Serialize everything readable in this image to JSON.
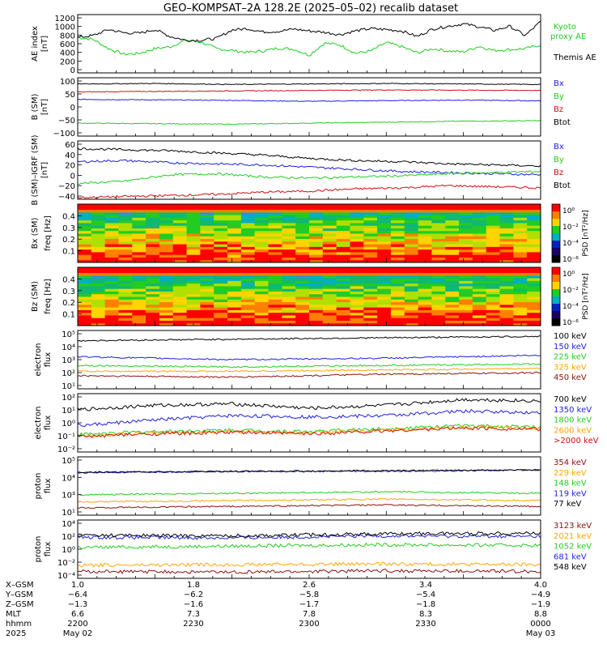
{
  "title": "GEO–KOMPSAT–2A 128.2E (2025–05–02) recalib dataset",
  "colors": {
    "black": "#000000",
    "blue": "#1f1fdc",
    "green": "#22cc22",
    "red": "#cc1111",
    "orange": "#ffa500",
    "darkred": "#8b1010",
    "kyoto": "#22cc22"
  },
  "chart_data": [
    {
      "type": "line",
      "id": "ae",
      "ylabel": "AE index [nT]",
      "yticks": [
        "0",
        "200",
        "400",
        "600",
        "800",
        "1000",
        "1200"
      ],
      "ylim": [
        0,
        1250
      ],
      "scale": "linear",
      "series": [
        {
          "name": "Kyoto proxy AE",
          "color": "#22cc22",
          "x": [
            1.0,
            1.1,
            1.2,
            1.3,
            1.4,
            1.5,
            1.6,
            1.7,
            1.8,
            1.9,
            2.0,
            2.1,
            2.2,
            2.3,
            2.4,
            2.5,
            2.6,
            2.7,
            2.8,
            2.9,
            3.0,
            3.1,
            3.2,
            3.3,
            3.4,
            3.5,
            3.6,
            3.7,
            3.8,
            3.9,
            4.0
          ],
          "values": [
            760,
            720,
            520,
            400,
            420,
            520,
            560,
            700,
            660,
            520,
            480,
            440,
            470,
            530,
            510,
            380,
            640,
            600,
            420,
            470,
            650,
            560,
            430,
            520,
            470,
            450,
            570,
            480,
            500,
            520,
            600
          ]
        },
        {
          "name": "Themis AE",
          "color": "#000000",
          "x": [
            1.0,
            1.1,
            1.2,
            1.3,
            1.4,
            1.5,
            1.6,
            1.7,
            1.8,
            1.9,
            2.0,
            2.1,
            2.2,
            2.3,
            2.4,
            2.5,
            2.6,
            2.7,
            2.8,
            2.9,
            3.0,
            3.1,
            3.2,
            3.3,
            3.4,
            3.5,
            3.6,
            3.7,
            3.8,
            3.9,
            4.0
          ],
          "values": [
            760,
            800,
            930,
            860,
            850,
            930,
            780,
            700,
            700,
            740,
            920,
            950,
            880,
            890,
            940,
            900,
            870,
            820,
            900,
            950,
            930,
            900,
            780,
            940,
            1000,
            1050,
            990,
            910,
            1000,
            800,
            1100
          ]
        }
      ]
    },
    {
      "type": "line",
      "id": "bsm",
      "ylabel": "B (SM) [nT]",
      "yticks": [
        "−100",
        "−50",
        "0",
        "50",
        "100"
      ],
      "ylim": [
        -110,
        125
      ],
      "scale": "linear",
      "series": [
        {
          "name": "Bx",
          "color": "#1f1fdc",
          "x": [
            1.0,
            1.5,
            2.0,
            2.5,
            3.0,
            3.5,
            4.0
          ],
          "values": [
            38,
            36,
            34,
            30,
            33,
            35,
            32
          ]
        },
        {
          "name": "By",
          "color": "#22cc22",
          "x": [
            1.0,
            1.5,
            2.0,
            2.5,
            3.0,
            3.5,
            4.0
          ],
          "values": [
            -58,
            -60,
            -62,
            -58,
            -54,
            -50,
            -48
          ]
        },
        {
          "name": "Bz",
          "color": "#cc1111",
          "x": [
            1.0,
            1.5,
            2.0,
            2.5,
            3.0,
            3.5,
            4.0
          ],
          "values": [
            68,
            70,
            72,
            74,
            76,
            75,
            74
          ]
        },
        {
          "name": "Btot",
          "color": "#000000",
          "x": [
            1.0,
            1.5,
            2.0,
            2.5,
            3.0,
            3.5,
            4.0
          ],
          "values": [
            100,
            102,
            98,
            100,
            102,
            100,
            98
          ]
        }
      ]
    },
    {
      "type": "line",
      "id": "bdiff",
      "ylabel": "B (SM)–IGRF (SM) [nT]",
      "yticks": [
        "−40",
        "−20",
        "0",
        "20",
        "40",
        "60"
      ],
      "ylim": [
        -45,
        62
      ],
      "scale": "linear",
      "series": [
        {
          "name": "Bx",
          "color": "#1f1fdc",
          "x": [
            1.0,
            1.3,
            1.6,
            1.9,
            2.2,
            2.5,
            2.8,
            3.1,
            3.4,
            3.7,
            4.0
          ],
          "values": [
            24,
            26,
            22,
            20,
            18,
            14,
            10,
            6,
            4,
            2,
            0
          ]
        },
        {
          "name": "By",
          "color": "#22cc22",
          "x": [
            1.0,
            1.3,
            1.6,
            1.9,
            2.2,
            2.5,
            2.8,
            3.1,
            3.4,
            3.7,
            4.0
          ],
          "values": [
            -16,
            -12,
            0,
            2,
            -4,
            -6,
            -4,
            -2,
            2,
            4,
            6
          ]
        },
        {
          "name": "Bz",
          "color": "#cc1111",
          "x": [
            1.0,
            1.3,
            1.6,
            1.9,
            2.2,
            2.5,
            2.8,
            3.1,
            3.4,
            3.7,
            4.0
          ],
          "values": [
            -42,
            -40,
            -38,
            -36,
            -32,
            -30,
            -26,
            -24,
            -20,
            -22,
            -24
          ]
        },
        {
          "name": "Btot",
          "color": "#000000",
          "x": [
            1.0,
            1.3,
            1.6,
            1.9,
            2.2,
            2.5,
            2.8,
            3.1,
            3.4,
            3.7,
            4.0
          ],
          "values": [
            48,
            46,
            44,
            40,
            36,
            30,
            26,
            24,
            20,
            18,
            16
          ]
        }
      ]
    },
    {
      "type": "heatmap",
      "id": "bx-spec",
      "ylabel": "Bx (SM) freq [Hz]",
      "yticks": [
        "0.1",
        "0.2",
        "0.3",
        "0.4"
      ],
      "ylim": [
        0,
        0.5
      ],
      "colorbar": {
        "label": "PSD [nT²/Hz]",
        "ticks": [
          "10⁰",
          "10⁻²",
          "10⁻⁴",
          "10⁻⁶"
        ]
      }
    },
    {
      "type": "heatmap",
      "id": "bz-spec",
      "ylabel": "Bz (SM) freq [Hz]",
      "yticks": [
        "0.1",
        "0.2",
        "0.3",
        "0.4"
      ],
      "ylim": [
        0,
        0.5
      ],
      "colorbar": {
        "label": "PSD [nT²/Hz]",
        "ticks": [
          "10⁰",
          "10⁻²",
          "10⁻⁴",
          "10⁻⁶"
        ]
      }
    },
    {
      "type": "line",
      "id": "eflux1",
      "ylabel": "electron flux",
      "scale": "log",
      "yticks": [
        "10¹",
        "10²",
        "10³",
        "10⁴",
        "10⁵"
      ],
      "ylim": [
        1,
        5
      ],
      "series": [
        {
          "name": "100 keV",
          "color": "#000000",
          "x": [
            1.0,
            2.0,
            3.0,
            4.0
          ],
          "values": [
            4.3,
            4.4,
            4.5,
            4.6
          ]
        },
        {
          "name": "150 keV",
          "color": "#1f1fdc",
          "x": [
            1.0,
            2.0,
            3.0,
            4.0
          ],
          "values": [
            3.2,
            3.0,
            3.1,
            3.3
          ]
        },
        {
          "name": "225 keV",
          "color": "#22cc22",
          "x": [
            1.0,
            2.0,
            3.0,
            4.0
          ],
          "values": [
            2.6,
            2.5,
            2.6,
            2.7
          ]
        },
        {
          "name": "325 keV",
          "color": "#ffa500",
          "x": [
            1.0,
            2.0,
            3.0,
            4.0
          ],
          "values": [
            2.2,
            2.2,
            2.3,
            2.4
          ]
        },
        {
          "name": "450 keV",
          "color": "#8b1010",
          "x": [
            1.0,
            2.0,
            3.0,
            4.0
          ],
          "values": [
            1.9,
            1.8,
            2.0,
            2.1
          ]
        }
      ]
    },
    {
      "type": "line",
      "id": "eflux2",
      "ylabel": "electron flux",
      "scale": "log",
      "yticks": [
        "10⁻²",
        "10⁻¹",
        "10⁰",
        "10¹",
        "10²"
      ],
      "ylim": [
        -2,
        2
      ],
      "series": [
        {
          "name": "700 keV",
          "color": "#000000",
          "x": [
            1.0,
            1.5,
            2.0,
            2.5,
            3.0,
            3.5,
            4.0
          ],
          "values": [
            0.9,
            1.2,
            1.3,
            1.0,
            1.2,
            1.6,
            1.5
          ]
        },
        {
          "name": "1350 keV",
          "color": "#1f1fdc",
          "x": [
            1.0,
            1.5,
            2.0,
            2.5,
            3.0,
            3.5,
            4.0
          ],
          "values": [
            -0.2,
            0.2,
            0.5,
            0.4,
            0.5,
            0.8,
            0.7
          ]
        },
        {
          "name": "1800 keV",
          "color": "#22cc22",
          "x": [
            1.0,
            1.5,
            2.0,
            2.5,
            3.0,
            3.5,
            4.0
          ],
          "values": [
            -0.8,
            -0.6,
            -0.5,
            -0.6,
            -0.4,
            -0.2,
            -0.3
          ]
        },
        {
          "name": "2600 keV",
          "color": "#ffa500",
          "x": [
            1.0,
            1.5,
            2.0,
            2.5,
            3.0,
            3.5,
            4.0
          ],
          "values": [
            -0.9,
            -0.7,
            -0.6,
            -0.7,
            -0.5,
            -0.3,
            -0.4
          ]
        },
        {
          "name": ">2000 keV",
          "color": "#cc1111",
          "x": [
            1.0,
            1.5,
            2.0,
            2.5,
            3.0,
            3.5,
            4.0
          ],
          "values": [
            -0.95,
            -0.75,
            -0.65,
            -0.75,
            -0.55,
            -0.35,
            -0.45
          ]
        }
      ]
    },
    {
      "type": "line",
      "id": "pflux1",
      "ylabel": "proton flux",
      "scale": "log",
      "yticks": [
        "10¹",
        "10³",
        "10⁴",
        "10⁵"
      ],
      "ylim": [
        1,
        5
      ],
      "series": [
        {
          "name": "354 keV",
          "color": "#8b1010",
          "x": [
            1.0,
            2.0,
            3.0,
            4.0
          ],
          "values": [
            1.5,
            1.6,
            1.7,
            1.6
          ]
        },
        {
          "name": "229 keV",
          "color": "#ffa500",
          "x": [
            1.0,
            2.0,
            3.0,
            4.0
          ],
          "values": [
            1.9,
            2.0,
            2.1,
            2.0
          ]
        },
        {
          "name": "148 keV",
          "color": "#22cc22",
          "x": [
            1.0,
            2.0,
            3.0,
            4.0
          ],
          "values": [
            2.4,
            2.5,
            2.6,
            2.5
          ]
        },
        {
          "name": "119 keV",
          "color": "#1f1fdc",
          "x": [
            1.0,
            2.0,
            3.0,
            4.0
          ],
          "values": [
            3.9,
            4.0,
            4.0,
            4.1
          ]
        },
        {
          "name": "77 keV",
          "color": "#000000",
          "x": [
            1.0,
            2.0,
            3.0,
            4.0
          ],
          "values": [
            3.95,
            4.0,
            4.05,
            4.1
          ]
        }
      ]
    },
    {
      "type": "line",
      "id": "pflux2",
      "ylabel": "proton flux",
      "scale": "log",
      "yticks": [
        "10⁻⁴",
        "10⁻²",
        "10⁰",
        "10²",
        "10⁴"
      ],
      "ylim": [
        -4.5,
        4
      ],
      "series": [
        {
          "name": "3123 keV",
          "color": "#8b1010",
          "x": [
            1.0,
            2.0,
            3.0,
            4.0
          ],
          "values": [
            -3.5,
            -3.6,
            -3.4,
            -3.5
          ]
        },
        {
          "name": "2021 keV",
          "color": "#ffa500",
          "x": [
            1.0,
            2.0,
            3.0,
            4.0
          ],
          "values": [
            -2.6,
            -2.5,
            -2.4,
            -2.5
          ]
        },
        {
          "name": "1052 keV",
          "color": "#22cc22",
          "x": [
            1.0,
            2.0,
            3.0,
            4.0
          ],
          "values": [
            0.0,
            0.2,
            0.4,
            0.3
          ]
        },
        {
          "name": "681 keV",
          "color": "#1f1fdc",
          "x": [
            1.0,
            2.0,
            3.0,
            4.0
          ],
          "values": [
            1.5,
            1.4,
            1.7,
            1.6
          ]
        },
        {
          "name": "548 keV",
          "color": "#000000",
          "x": [
            1.0,
            2.0,
            3.0,
            4.0
          ],
          "values": [
            1.8,
            1.7,
            2.0,
            2.1
          ]
        }
      ]
    }
  ],
  "xaxis": {
    "row_labels": [
      "X–GSM",
      "Y–GSM",
      "Z–GSM",
      "MLT",
      "hhmm",
      "2025"
    ],
    "columns": [
      [
        "1.0",
        "−6.4",
        "−1.3",
        "6.6",
        "2200",
        "May 02"
      ],
      [
        "1.8",
        "−6.2",
        "−1.6",
        "7.3",
        "2230",
        ""
      ],
      [
        "2.6",
        "−5.8",
        "−1.7",
        "7.8",
        "2300",
        ""
      ],
      [
        "3.4",
        "−5.4",
        "−1.8",
        "8.3",
        "2330",
        ""
      ],
      [
        "4.0",
        "−4.9",
        "−1.9",
        "8.8",
        "0000",
        "May 03"
      ]
    ]
  }
}
